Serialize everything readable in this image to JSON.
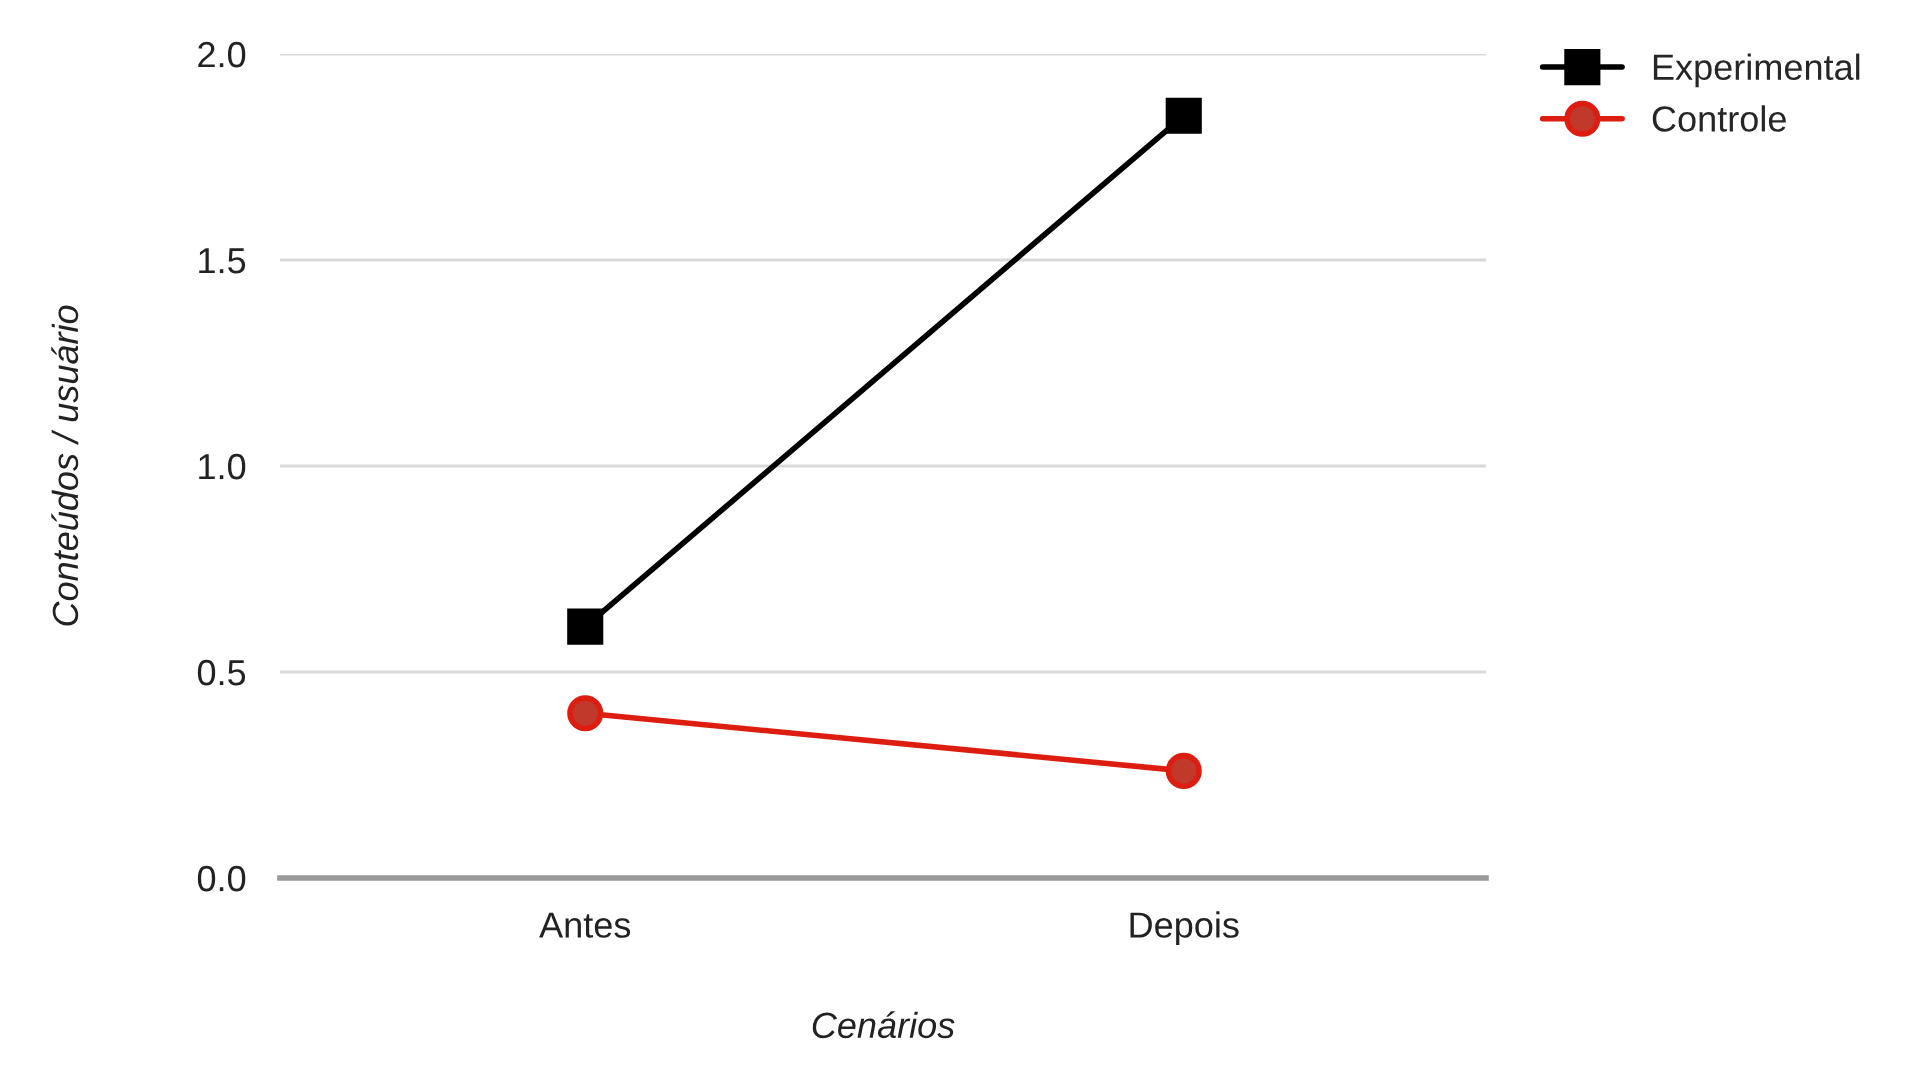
{
  "chart_data": {
    "type": "line",
    "xlabel": "Cenários",
    "ylabel": "Conteúdos / usuário",
    "categories": [
      "Antes",
      "Depois"
    ],
    "series": [
      {
        "name": "Experimental",
        "color": "#000000",
        "marker": "square",
        "values": [
          0.61,
          1.85
        ]
      },
      {
        "name": "Controle",
        "color": "#dc1d10",
        "marker": "circle",
        "values": [
          0.4,
          0.26
        ]
      }
    ],
    "ylim": [
      0,
      2.0
    ],
    "yticks": [
      {
        "value": 0,
        "label": "0.0"
      },
      {
        "value": 0.5,
        "label": "0.5"
      },
      {
        "value": 1.0,
        "label": "1.0"
      },
      {
        "value": 1.5,
        "label": "1.5"
      },
      {
        "value": 2.0,
        "label": "2.0"
      }
    ],
    "grid": "y",
    "legend": "top right"
  }
}
